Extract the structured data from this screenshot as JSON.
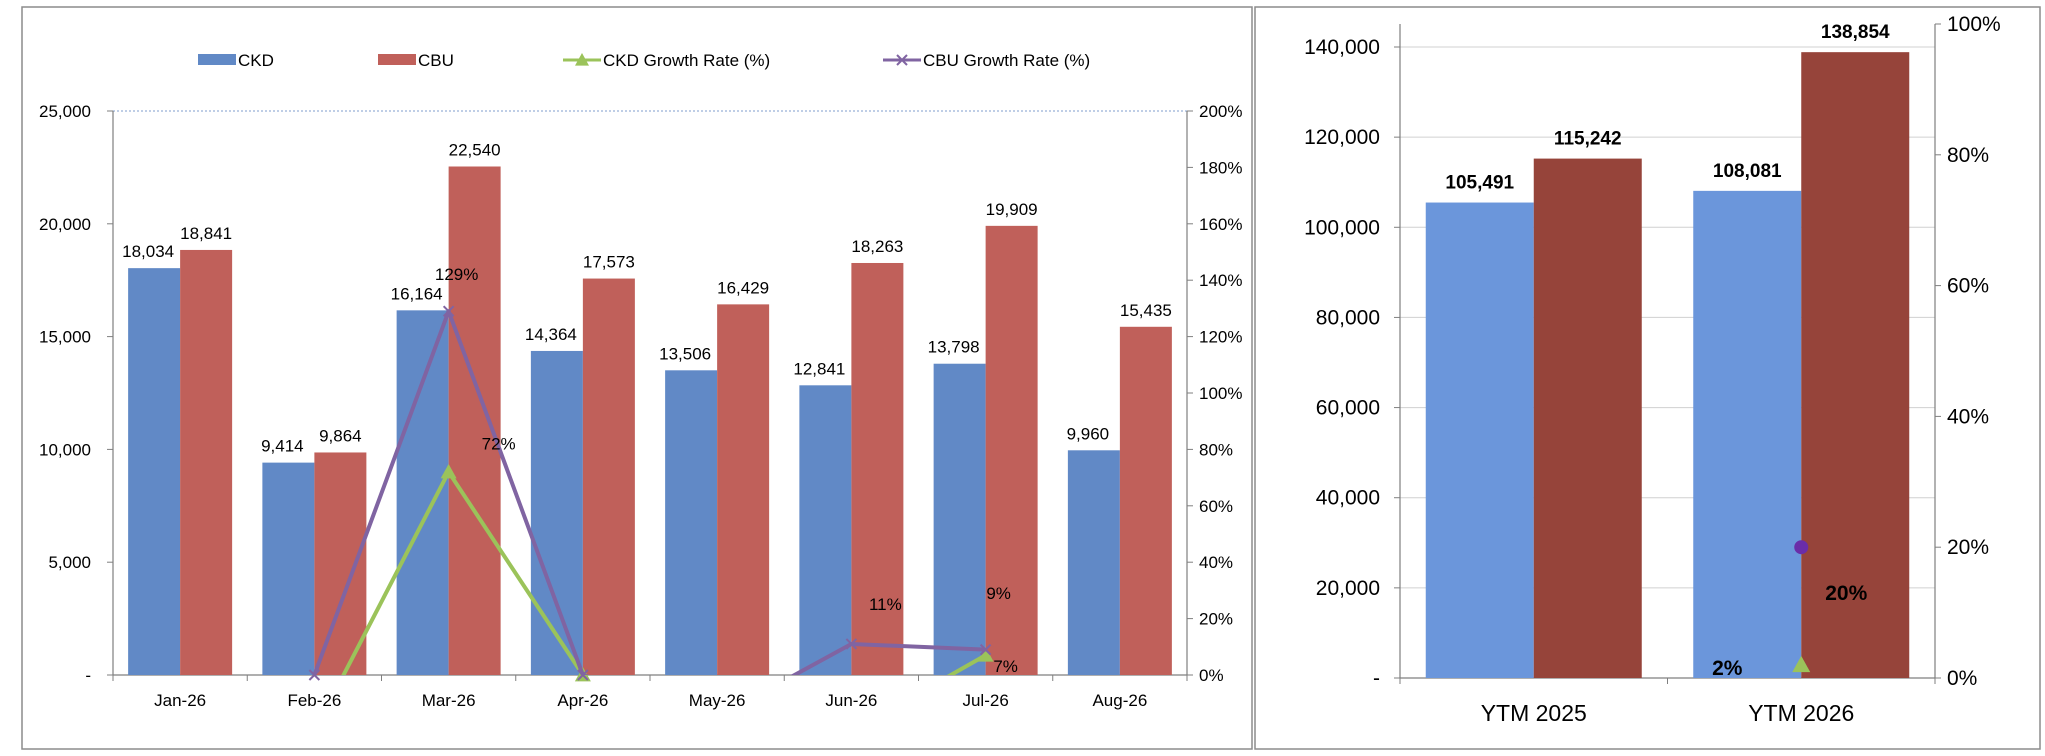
{
  "chart_data": [
    {
      "type": "bar",
      "categories": [
        "Jan-26",
        "Feb-26",
        "Mar-26",
        "Apr-26",
        "May-26",
        "Jun-26",
        "Jul-26",
        "Aug-26"
      ],
      "series": [
        {
          "name": "CKD",
          "kind": "bar",
          "axis": "left",
          "color": "#6189C6",
          "values": [
            18034,
            9414,
            16164,
            14364,
            13506,
            12841,
            13798,
            9960
          ],
          "labels": [
            "18,034",
            "9,414",
            "16,164",
            "14,364",
            "13,506",
            "12,841",
            "13,798",
            "9,960"
          ]
        },
        {
          "name": "CBU",
          "kind": "bar",
          "axis": "left",
          "color": "#C0605A",
          "values": [
            18841,
            9864,
            22540,
            17573,
            16429,
            18263,
            19909,
            15435
          ],
          "labels": [
            "18,841",
            "9,864",
            "22,540",
            "17,573",
            "16,429",
            "18,263",
            "19,909",
            "15,435"
          ]
        },
        {
          "name": "CKD Growth Rate (%)",
          "kind": "line",
          "axis": "right",
          "color": "#9BC35A",
          "marker": "triangle",
          "values": [
            null,
            -20,
            72,
            0,
            -15,
            -20,
            7,
            null
          ]
        },
        {
          "name": "CBU Growth Rate (%)",
          "kind": "line",
          "axis": "right",
          "color": "#8064A2",
          "marker": "x",
          "values": [
            null,
            0,
            129,
            0,
            -15,
            11,
            9,
            null
          ]
        }
      ],
      "annotations": [
        {
          "text": "129%",
          "category": "Mar-26",
          "y": 140,
          "dx": 8
        },
        {
          "text": "72%",
          "category": "Mar-26",
          "y": 80,
          "dx": 50
        },
        {
          "text": "11%",
          "category": "Jun-26",
          "y": 23,
          "dx": 34
        },
        {
          "text": "9%",
          "category": "Jul-26",
          "y": 27,
          "dx": 13
        },
        {
          "text": "7%",
          "category": "Jul-26",
          "y": 1,
          "dx": 20
        }
      ],
      "y_left": {
        "ylim": [
          0,
          25000
        ],
        "ticks": [
          0,
          5000,
          10000,
          15000,
          20000,
          25000
        ],
        "tick_labels": [
          "-",
          "5,000",
          "10,000",
          "15,000",
          "20,000",
          "25,000"
        ]
      },
      "y_right": {
        "ylim": [
          0,
          200
        ],
        "ticks": [
          0,
          20,
          40,
          60,
          80,
          100,
          120,
          140,
          160,
          180,
          200
        ],
        "tick_labels": [
          "0%",
          "20%",
          "40%",
          "60%",
          "80%",
          "100%",
          "120%",
          "140%",
          "160%",
          "180%",
          "200%"
        ]
      },
      "title": "",
      "xlabel": "",
      "ylabel": "",
      "grid": false,
      "legend_position": "top"
    },
    {
      "type": "bar",
      "categories": [
        "YTM 2025",
        "YTM 2026"
      ],
      "series": [
        {
          "name": "CKD",
          "kind": "bar",
          "axis": "left",
          "color": "#6B96DB",
          "values": [
            105491,
            108081
          ],
          "labels": [
            "105,491",
            "108,081"
          ]
        },
        {
          "name": "CBU",
          "kind": "bar",
          "axis": "left",
          "color": "#96443A",
          "values": [
            115242,
            138854
          ],
          "labels": [
            "115,242",
            "138,854"
          ]
        },
        {
          "name": "CKD Growth Rate (%)",
          "kind": "point",
          "axis": "right",
          "color": "#9BC35A",
          "marker": "triangle",
          "values": [
            null,
            2
          ]
        },
        {
          "name": "CBU Growth Rate (%)",
          "kind": "point",
          "axis": "right",
          "color": "#6A2DA8",
          "marker": "circle",
          "values": [
            null,
            20
          ]
        }
      ],
      "annotations": [
        {
          "text": "2%",
          "category": "YTM 2026",
          "y": 1.5,
          "dx": -74
        },
        {
          "text": "20%",
          "category": "YTM 2026",
          "y": 13,
          "dx": 45
        }
      ],
      "y_left": {
        "ylim": [
          0,
          145000
        ],
        "ticks": [
          0,
          20000,
          40000,
          60000,
          80000,
          100000,
          120000,
          140000
        ],
        "tick_labels": [
          "-",
          "20,000",
          "40,000",
          "60,000",
          "80,000",
          "100,000",
          "120,000",
          "140,000"
        ]
      },
      "y_right": {
        "ylim": [
          0,
          100
        ],
        "ticks": [
          0,
          20,
          40,
          60,
          80,
          100
        ],
        "tick_labels": [
          "0%",
          "20%",
          "40%",
          "60%",
          "80%",
          "100%"
        ]
      },
      "title": "",
      "xlabel": "",
      "ylabel": "",
      "grid": true,
      "legend_position": "none"
    }
  ]
}
